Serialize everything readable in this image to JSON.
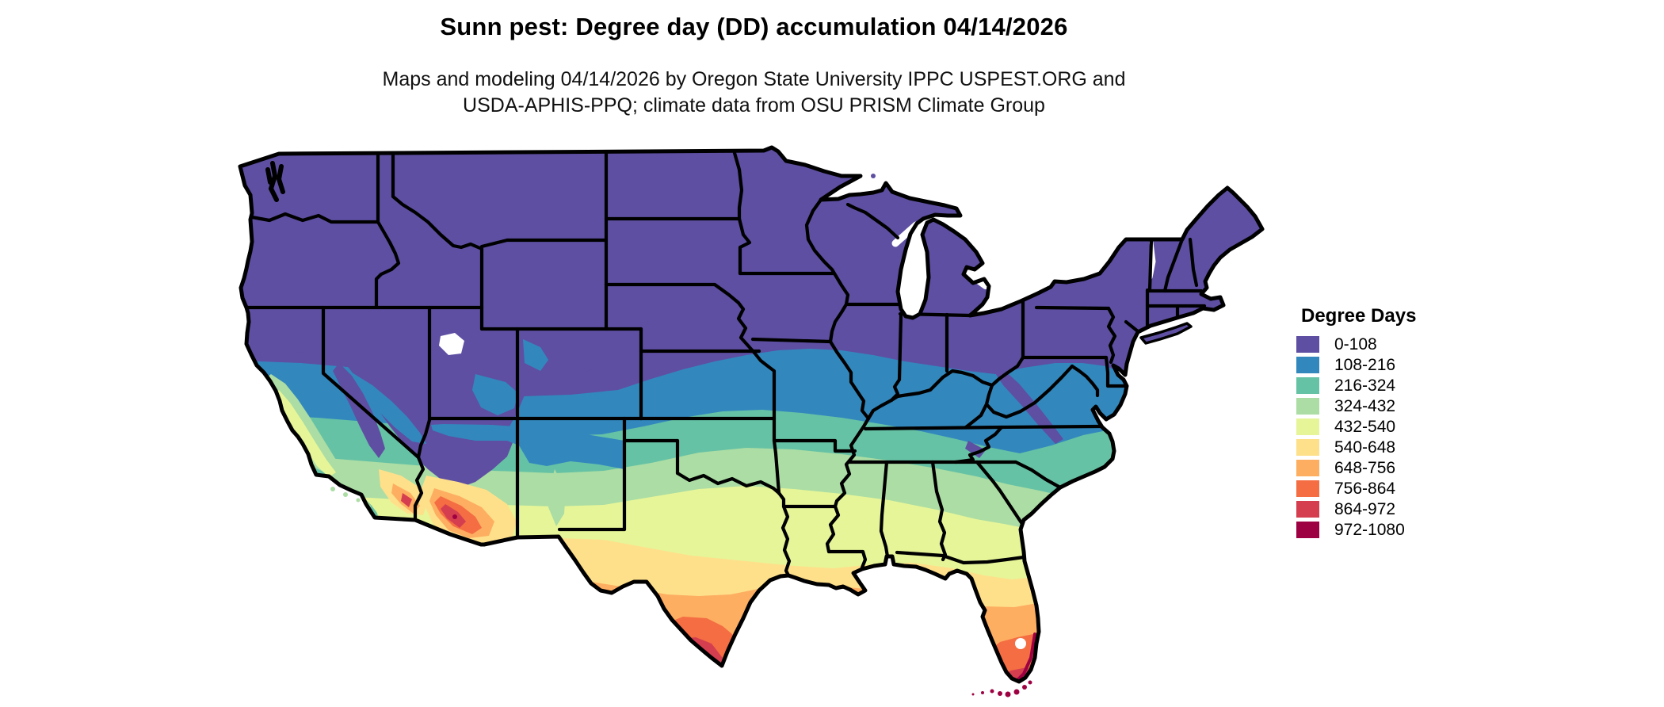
{
  "title": "Sunn pest: Degree day (DD) accumulation 04/14/2026",
  "subtitle_line1": "Maps and modeling 04/14/2026 by Oregon State University IPPC USPEST.ORG and",
  "subtitle_line2": "USDA-APHIS-PPQ; climate data from OSU PRISM Climate Group",
  "legend": {
    "title": "Degree Days",
    "entries": [
      {
        "label": "0-108",
        "color": "#5e4fa2"
      },
      {
        "label": "108-216",
        "color": "#3288bd"
      },
      {
        "label": "216-324",
        "color": "#66c2a5"
      },
      {
        "label": "324-432",
        "color": "#abdda4"
      },
      {
        "label": "432-540",
        "color": "#e6f598"
      },
      {
        "label": "540-648",
        "color": "#fee08b"
      },
      {
        "label": "648-756",
        "color": "#fdae61"
      },
      {
        "label": "756-864",
        "color": "#f46d43"
      },
      {
        "label": "864-972",
        "color": "#d53e4f"
      },
      {
        "label": "972-1080",
        "color": "#9e0142"
      }
    ]
  },
  "map": {
    "type": "choropleth-raster",
    "region": "Contiguous United States",
    "border_color": "#000000",
    "water_color": "#ffffff"
  }
}
